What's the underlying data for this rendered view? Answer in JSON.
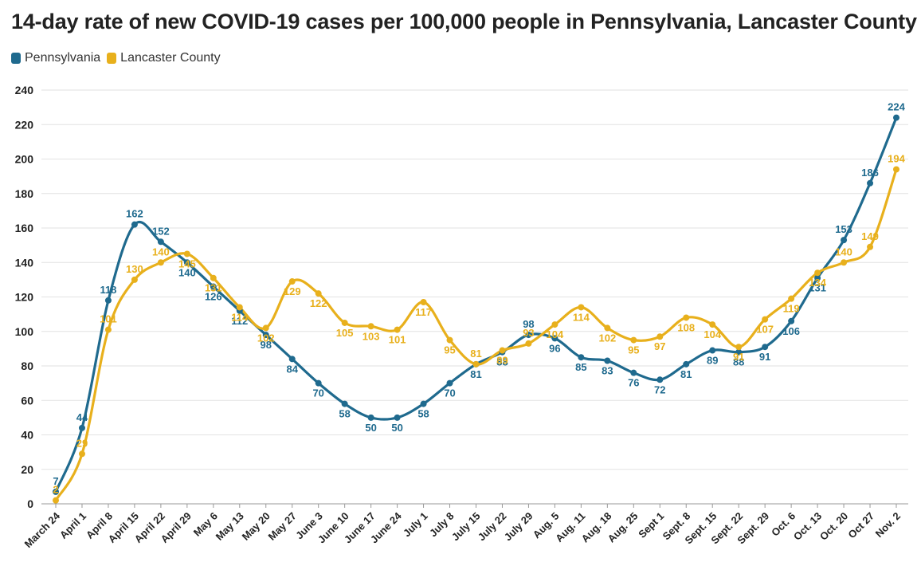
{
  "chart_data": {
    "type": "line",
    "title": "14-day rate of new COVID-19 cases per 100,000 people in Pennsylvania, Lancaster County",
    "xlabel": "",
    "ylabel": "",
    "ylim": [
      0,
      240
    ],
    "yticks": [
      0,
      20,
      40,
      60,
      80,
      100,
      120,
      140,
      160,
      180,
      200,
      220,
      240
    ],
    "grid": true,
    "legend_position": "top-left",
    "categories": [
      "March 24",
      "April 1",
      "April 8",
      "April 15",
      "April 22",
      "April 29",
      "May 6",
      "May 13",
      "May 20",
      "May 27",
      "June 3",
      "June 10",
      "June 17",
      "June 24",
      "July 1",
      "July 8",
      "July 15",
      "July 22",
      "July 29",
      "Aug. 5",
      "Aug. 11",
      "Aug. 18",
      "Aug. 25",
      "Sept 1",
      "Sept. 8",
      "Sept. 15",
      "Sept. 22",
      "Sept. 29",
      "Oct. 6",
      "Oct. 13",
      "Oct. 20",
      "Oct 27",
      "Nov. 2"
    ],
    "series": [
      {
        "name": "Pennsylvania",
        "color": "#1f6a8e",
        "values": [
          7,
          44,
          118,
          162,
          152,
          140,
          126,
          112,
          98,
          84,
          70,
          58,
          50,
          50,
          58,
          70,
          81,
          88,
          98,
          96,
          85,
          83,
          76,
          72,
          81,
          89,
          88,
          91,
          106,
          131,
          153,
          186,
          224
        ]
      },
      {
        "name": "Lancaster County",
        "color": "#e8b01c",
        "values": [
          2,
          29,
          101,
          130,
          140,
          145,
          131,
          114,
          102,
          129,
          122,
          105,
          103,
          101,
          117,
          95,
          81,
          89,
          93,
          104,
          114,
          102,
          95,
          97,
          108,
          104,
          91,
          107,
          119,
          134,
          140,
          149,
          194
        ]
      }
    ]
  }
}
